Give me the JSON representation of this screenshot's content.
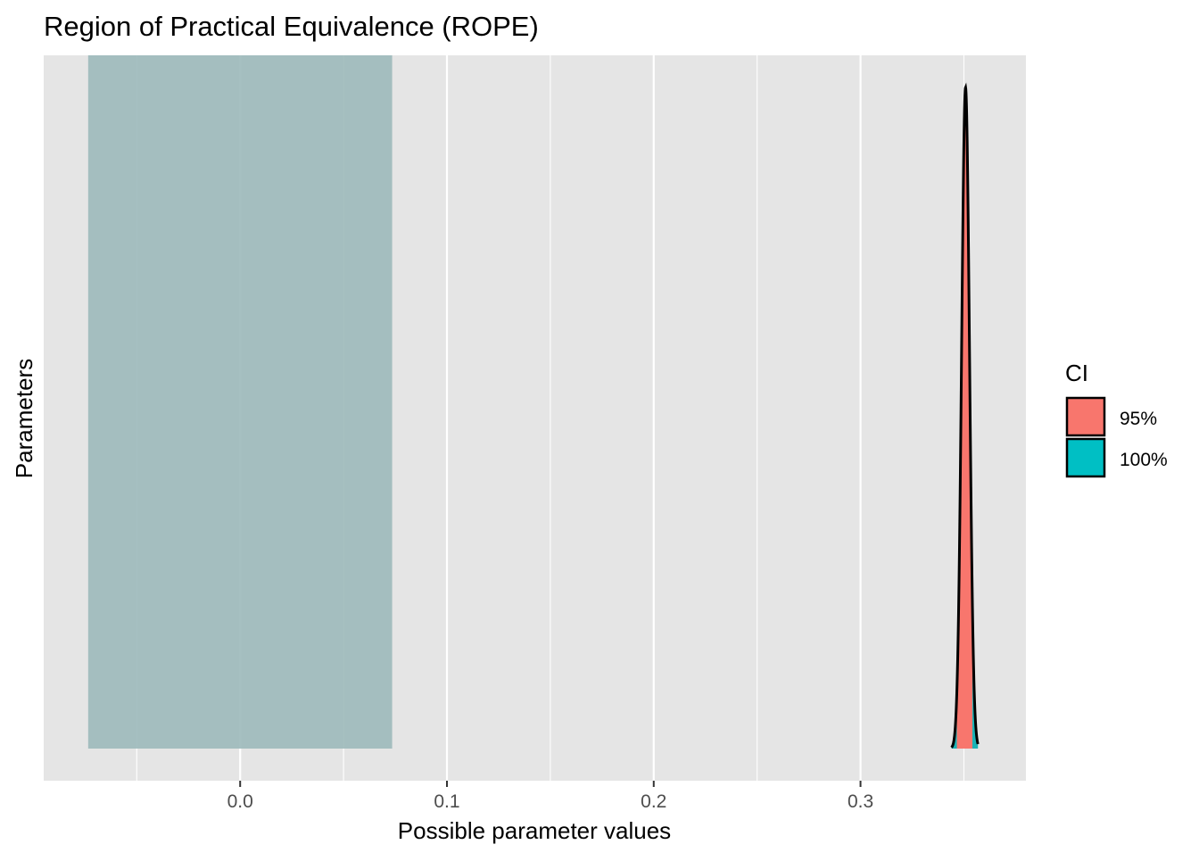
{
  "chart_data": {
    "type": "area",
    "title": "Region of Practical Equivalence (ROPE)",
    "xlabel": "Possible parameter values",
    "ylabel": "Parameters",
    "xlim": [
      -0.095,
      0.38
    ],
    "x_ticks": [
      0.0,
      0.1,
      0.2,
      0.3
    ],
    "x_tick_labels": [
      "0.0",
      "0.1",
      "0.2",
      "0.3"
    ],
    "x_minor_ticks": [
      -0.05,
      0.05,
      0.15,
      0.25,
      0.35
    ],
    "grid": true,
    "rope": {
      "low": -0.0735,
      "high": 0.0735,
      "color": "#9EBBBC"
    },
    "posterior": {
      "mean": 0.3508,
      "sd": 0.0019,
      "ci95": [
        0.3466,
        0.3541
      ],
      "ci100": [
        0.344,
        0.3568
      ]
    },
    "legend": {
      "title": "CI",
      "placement": "right",
      "items": [
        {
          "label": "95%",
          "color": "#F8766D"
        },
        {
          "label": "100%",
          "color": "#00BFC4"
        }
      ]
    },
    "colors": {
      "panel_background": "#E5E5E5",
      "grid_major": "#FFFFFF",
      "ci95_fill": "#F8766D",
      "ci100_fill": "#1AB2B5",
      "density_outline": "#000000"
    }
  }
}
